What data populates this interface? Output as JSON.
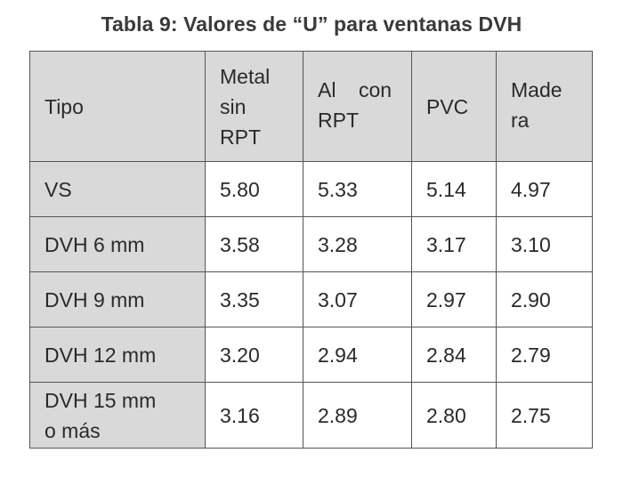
{
  "caption": "Tabla 9: Valores de “U” para ventanas DVH",
  "header": {
    "tipo": "Tipo",
    "metal": [
      "Metal",
      "sin",
      "RPT"
    ],
    "al": [
      "Al    con",
      "RPT"
    ],
    "pvc": "PVC",
    "madera": [
      "Made",
      "ra"
    ]
  },
  "rows": [
    {
      "tipo": [
        "VS"
      ],
      "values": [
        "5.80",
        "5.33",
        "5.14",
        "4.97"
      ]
    },
    {
      "tipo": [
        "DVH 6 mm"
      ],
      "values": [
        "3.58",
        "3.28",
        "3.17",
        "3.10"
      ]
    },
    {
      "tipo": [
        "DVH 9 mm"
      ],
      "values": [
        "3.35",
        "3.07",
        "2.97",
        "2.90"
      ]
    },
    {
      "tipo": [
        "DVH 12 mm"
      ],
      "values": [
        "3.20",
        "2.94",
        "2.84",
        "2.79"
      ]
    },
    {
      "tipo": [
        "DVH 15 mm",
        "o más"
      ],
      "values": [
        "3.16",
        "2.89",
        "2.80",
        "2.75"
      ]
    }
  ]
}
